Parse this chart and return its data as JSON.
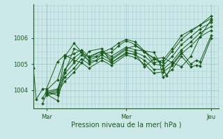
{
  "bg_color": "#cce8e8",
  "grid_color": "#a8d0d0",
  "line_color": "#1a5c1a",
  "marker_color": "#1a5c1a",
  "xlabel": "Pression niveau de la mer( hPa )",
  "xtick_labels": [
    "Mar",
    "Mer",
    "Jeu"
  ],
  "xtick_positions": [
    0.07,
    0.5,
    0.96
  ],
  "ytick_labels": [
    "1004",
    "1005",
    "1006"
  ],
  "ytick_values": [
    1004,
    1005,
    1006
  ],
  "ymin": 1003.3,
  "ymax": 1007.3,
  "xmin": 0.0,
  "xmax": 1.0,
  "series": [
    {
      "x": [
        0.0,
        0.015,
        0.05,
        0.07,
        0.13,
        0.17,
        0.22,
        0.26,
        0.3,
        0.37,
        0.42,
        0.5,
        0.55,
        0.6,
        0.65,
        0.7,
        0.75,
        0.8,
        0.85,
        0.9,
        0.96
      ],
      "y": [
        1004.85,
        1003.65,
        1004.05,
        1004.05,
        1005.1,
        1005.35,
        1005.15,
        1005.05,
        1005.5,
        1005.6,
        1005.05,
        1005.4,
        1005.4,
        1004.9,
        1005.2,
        1005.25,
        1005.05,
        1004.9,
        1005.3,
        1006.05,
        1006.7
      ]
    },
    {
      "x": [
        0.07,
        0.13,
        0.17,
        0.22,
        0.26,
        0.3,
        0.37,
        0.42,
        0.5,
        0.55,
        0.6,
        0.65,
        0.7,
        0.75,
        0.8,
        0.85,
        0.9,
        0.96
      ],
      "y": [
        1004.0,
        1004.4,
        1005.25,
        1005.4,
        1005.55,
        1005.3,
        1005.5,
        1005.2,
        1005.6,
        1005.7,
        1005.5,
        1005.05,
        1005.15,
        1005.6,
        1006.1,
        1006.3,
        1006.5,
        1006.85
      ]
    },
    {
      "x": [
        0.07,
        0.13,
        0.17,
        0.22,
        0.26,
        0.3,
        0.37,
        0.42,
        0.5,
        0.55,
        0.6,
        0.65,
        0.7,
        0.75,
        0.8,
        0.85,
        0.9,
        0.96
      ],
      "y": [
        1003.95,
        1004.05,
        1004.8,
        1005.25,
        1005.45,
        1005.25,
        1005.5,
        1005.3,
        1005.65,
        1005.55,
        1005.5,
        1005.2,
        1005.05,
        1005.5,
        1005.95,
        1006.25,
        1006.5,
        1006.75
      ]
    },
    {
      "x": [
        0.07,
        0.13,
        0.17,
        0.22,
        0.26,
        0.3,
        0.37,
        0.42,
        0.5,
        0.55,
        0.6,
        0.65,
        0.7,
        0.75,
        0.8,
        0.85,
        0.9,
        0.96
      ],
      "y": [
        1003.9,
        1004.0,
        1004.65,
        1005.05,
        1005.35,
        1005.15,
        1005.35,
        1005.15,
        1005.55,
        1005.45,
        1005.3,
        1005.0,
        1004.95,
        1005.3,
        1005.75,
        1006.05,
        1006.35,
        1006.6
      ]
    },
    {
      "x": [
        0.07,
        0.13,
        0.17,
        0.22,
        0.26,
        0.3,
        0.37,
        0.42,
        0.5,
        0.55,
        0.6,
        0.65,
        0.7,
        0.75,
        0.8,
        0.85,
        0.9,
        0.96
      ],
      "y": [
        1003.85,
        1003.95,
        1004.5,
        1004.85,
        1005.2,
        1005.0,
        1005.25,
        1005.05,
        1005.45,
        1005.35,
        1005.15,
        1004.8,
        1004.8,
        1005.1,
        1005.55,
        1005.85,
        1006.2,
        1006.45
      ]
    },
    {
      "x": [
        0.07,
        0.13,
        0.17,
        0.22,
        0.26,
        0.3,
        0.37,
        0.42,
        0.5,
        0.55,
        0.6,
        0.65,
        0.7,
        0.75,
        0.8,
        0.85,
        0.9,
        0.96
      ],
      "y": [
        1003.8,
        1003.9,
        1004.35,
        1004.7,
        1005.05,
        1004.85,
        1005.15,
        1004.95,
        1005.35,
        1005.25,
        1005.0,
        1004.65,
        1004.7,
        1004.95,
        1005.4,
        1005.7,
        1006.05,
        1006.3
      ]
    },
    {
      "x": [
        0.05,
        0.07,
        0.13,
        0.17,
        0.22,
        0.26,
        0.3,
        0.34,
        0.37,
        0.42,
        0.46,
        0.5,
        0.55,
        0.6,
        0.65,
        0.7,
        0.72,
        0.75,
        0.8,
        0.85,
        0.88,
        0.9,
        0.96
      ],
      "y": [
        1003.7,
        1003.95,
        1003.8,
        1005.3,
        1005.8,
        1005.45,
        1005.25,
        1005.3,
        1005.45,
        1005.6,
        1005.8,
        1005.95,
        1005.85,
        1005.5,
        1005.45,
        1004.85,
        1004.55,
        1005.0,
        1005.45,
        1005.0,
        1005.15,
        1005.1,
        1006.1
      ]
    },
    {
      "x": [
        0.05,
        0.07,
        0.13,
        0.17,
        0.22,
        0.26,
        0.3,
        0.34,
        0.37,
        0.42,
        0.46,
        0.5,
        0.55,
        0.6,
        0.65,
        0.68,
        0.7,
        0.75,
        0.8,
        0.85,
        0.88,
        0.9,
        0.96
      ],
      "y": [
        1003.5,
        1003.85,
        1003.6,
        1004.7,
        1005.6,
        1005.45,
        1005.1,
        1005.15,
        1005.4,
        1005.45,
        1005.7,
        1005.9,
        1005.75,
        1005.45,
        1005.25,
        1005.1,
        1004.5,
        1004.8,
        1005.3,
        1004.9,
        1004.95,
        1004.93,
        1006.0
      ]
    }
  ]
}
